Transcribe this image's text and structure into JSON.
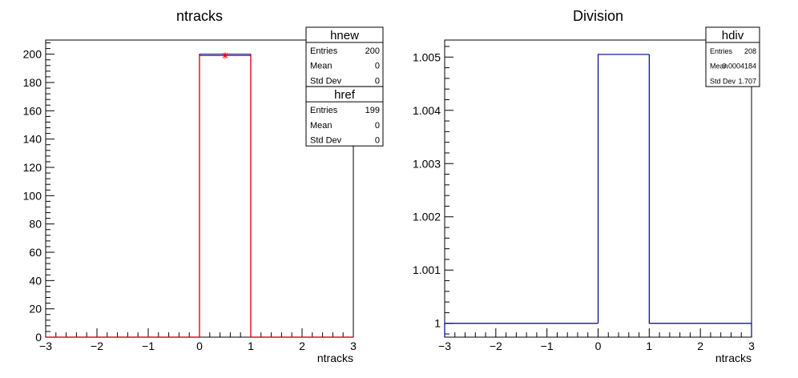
{
  "chart_data": [
    {
      "type": "histogram",
      "title": "ntracks",
      "x_label": "ntracks",
      "bins": [
        -3,
        -2,
        -1,
        0,
        1,
        2,
        3
      ],
      "series": [
        {
          "name": "hnew",
          "color": "#000099",
          "values": [
            0,
            0,
            0,
            200,
            0,
            0
          ]
        },
        {
          "name": "href",
          "color": "#ff0000",
          "values": [
            0,
            0,
            0,
            199,
            0,
            0
          ],
          "marker": "star"
        }
      ],
      "xlim": [
        -3,
        3
      ],
      "xticks": [
        {
          "value": -3,
          "label": "−3"
        },
        {
          "value": -2,
          "label": "−2"
        },
        {
          "value": -1,
          "label": "−1"
        },
        0,
        1,
        2,
        3
      ],
      "ylim": [
        0,
        210
      ],
      "yticks": [
        0,
        20,
        40,
        60,
        80,
        100,
        120,
        140,
        160,
        180,
        200
      ],
      "stats": [
        {
          "name": "hnew",
          "rows": [
            {
              "label": "Entries",
              "value": 200
            },
            {
              "label": "Mean",
              "value": 0
            },
            {
              "label": "Std Dev",
              "value": 0
            }
          ]
        },
        {
          "name": "href",
          "rows": [
            {
              "label": "Entries",
              "value": 199
            },
            {
              "label": "Mean",
              "value": 0
            },
            {
              "label": "Std Dev",
              "value": 0
            }
          ]
        }
      ]
    },
    {
      "type": "histogram",
      "title": "Division",
      "x_label": "ntracks",
      "bins": [
        -3,
        -2,
        -1,
        0,
        1,
        2,
        3
      ],
      "series": [
        {
          "name": "hdiv",
          "color": "#000099",
          "values": [
            1,
            1,
            1,
            1.00505,
            1,
            1
          ]
        }
      ],
      "xlim": [
        -3,
        3
      ],
      "xticks": [
        {
          "value": -3,
          "label": "−3"
        },
        {
          "value": -2,
          "label": "−2"
        },
        {
          "value": -1,
          "label": "−1"
        },
        0,
        1,
        2,
        3
      ],
      "ylim": [
        0.99974,
        1.00532
      ],
      "yticks": [
        1,
        1.001,
        1.002,
        1.003,
        1.004,
        1.005
      ],
      "stats": [
        {
          "name": "hdiv",
          "rows": [
            {
              "label": "Entries",
              "value": 208
            },
            {
              "label": "Mean",
              "value": 0.0004184
            },
            {
              "label": "Std Dev",
              "value": 1.707
            }
          ]
        }
      ]
    }
  ]
}
